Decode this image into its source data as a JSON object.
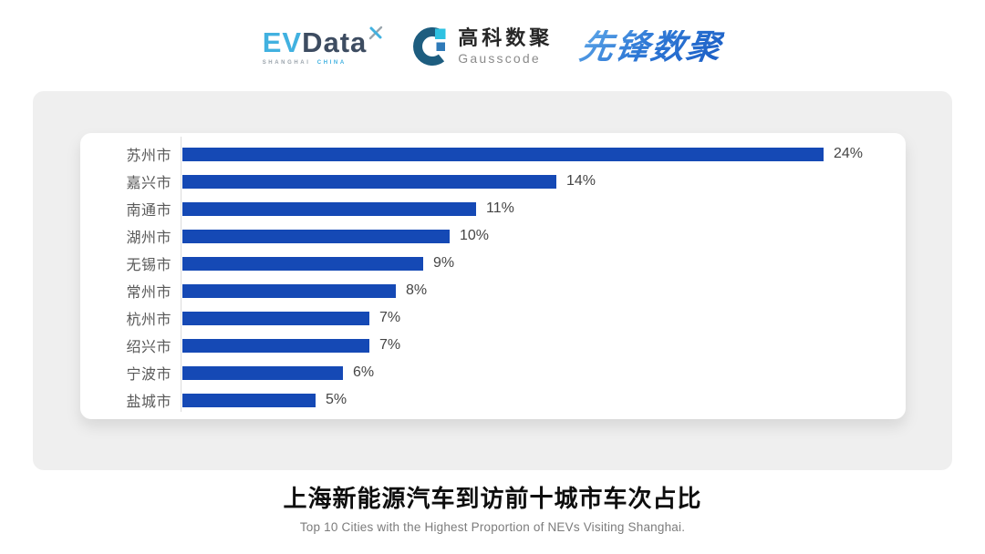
{
  "header": {
    "evdata": {
      "prefix": "EV",
      "name": "Data",
      "tagline_shanghai": "SHANGHAI",
      "tagline_china": "CHINA",
      "colors": {
        "cyan": "#41b1e0",
        "slate": "#3d4c61"
      }
    },
    "gausscode": {
      "cn_name": "高科数聚",
      "en_name": "Gausscode",
      "colors": {
        "ring": "#1d5d7f",
        "square_top": "#2ec1e1",
        "square_mid": "#2f7ab8"
      }
    },
    "pioneer": {
      "name": "先锋数聚",
      "color": "#2e6fd0"
    }
  },
  "chart_data": {
    "type": "bar",
    "orientation": "horizontal",
    "title": "上海新能源汽车到访前十城市车次占比",
    "categories": [
      "苏州市",
      "嘉兴市",
      "南通市",
      "湖州市",
      "无锡市",
      "常州市",
      "杭州市",
      "绍兴市",
      "宁波市",
      "盐城市"
    ],
    "values": [
      24,
      14,
      11,
      10,
      9,
      8,
      7,
      7,
      6,
      5
    ],
    "value_labels": [
      "24%",
      "14%",
      "11%",
      "10%",
      "9%",
      "8%",
      "7%",
      "7%",
      "6%",
      "5%"
    ],
    "xlim": [
      0,
      24
    ],
    "unit": "%",
    "bar_color": "#1549b5",
    "axis_line_color": "#dcdcdc",
    "grid": false,
    "legend": false,
    "value_labels_position": "end-of-bar"
  },
  "footer": {
    "title": "上海新能源汽车到访前十城市车次占比",
    "subtitle": "Top 10 Cities with the Highest Proportion of  NEVs Visiting Shanghai."
  }
}
